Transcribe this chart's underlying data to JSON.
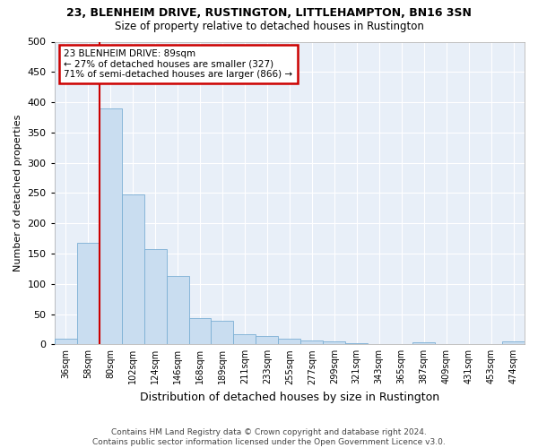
{
  "title": "23, BLENHEIM DRIVE, RUSTINGTON, LITTLEHAMPTON, BN16 3SN",
  "subtitle": "Size of property relative to detached houses in Rustington",
  "xlabel": "Distribution of detached houses by size in Rustington",
  "ylabel": "Number of detached properties",
  "bar_color": "#c9ddf0",
  "bar_edge_color": "#7bafd4",
  "background_color": "#e8eff8",
  "grid_color": "#ffffff",
  "categories": [
    "36sqm",
    "58sqm",
    "80sqm",
    "102sqm",
    "124sqm",
    "146sqm",
    "168sqm",
    "189sqm",
    "211sqm",
    "233sqm",
    "255sqm",
    "277sqm",
    "299sqm",
    "321sqm",
    "343sqm",
    "365sqm",
    "387sqm",
    "409sqm",
    "431sqm",
    "453sqm",
    "474sqm"
  ],
  "values": [
    10,
    167,
    390,
    248,
    157,
    113,
    43,
    39,
    17,
    14,
    10,
    6,
    5,
    2,
    1,
    0,
    4,
    0,
    0,
    0,
    5
  ],
  "property_label": "23 BLENHEIM DRIVE: 89sqm",
  "annotation_line1": "← 27% of detached houses are smaller (327)",
  "annotation_line2": "71% of semi-detached houses are larger (866) →",
  "vline_bin_index": 2,
  "ylim": [
    0,
    500
  ],
  "yticks": [
    0,
    50,
    100,
    150,
    200,
    250,
    300,
    350,
    400,
    450,
    500
  ],
  "footer_line1": "Contains HM Land Registry data © Crown copyright and database right 2024.",
  "footer_line2": "Contains public sector information licensed under the Open Government Licence v3.0.",
  "annotation_box_color": "#cc0000",
  "vline_color": "#cc0000",
  "title_fontsize": 9,
  "subtitle_fontsize": 8.5,
  "ylabel_fontsize": 8,
  "xlabel_fontsize": 9,
  "tick_fontsize": 7,
  "annotation_fontsize": 7.5,
  "footer_fontsize": 6.5
}
